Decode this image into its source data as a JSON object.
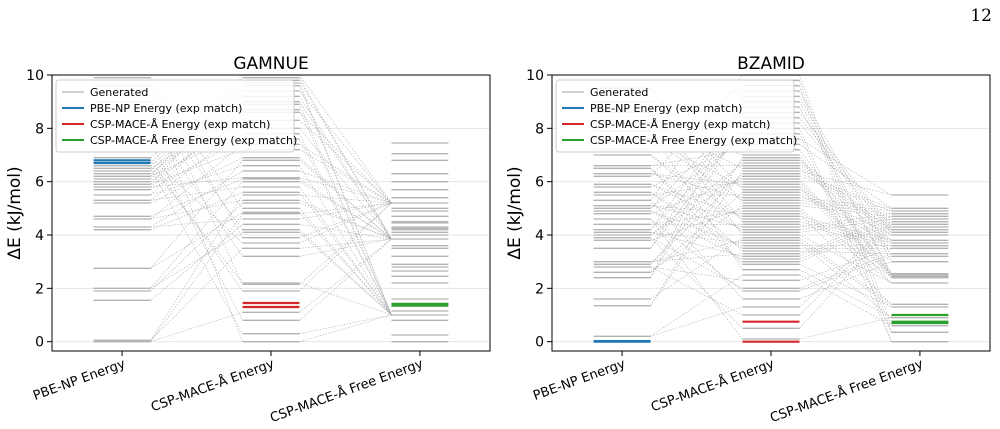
{
  "page_number": "12",
  "colors": {
    "generated": "#b3b3b3",
    "pbe": "#1f77b4",
    "mace": "#d62728",
    "mace_free": "#2ca02c",
    "grid": "#e6e6e6"
  },
  "chart_data": [
    {
      "type": "line",
      "title": "GAMNUE",
      "ylabel": "ΔE (kJ/mol)",
      "categories": [
        "PBE-NP Energy",
        "CSP-MACE-Å Energy",
        "CSP-MACE-Å Free Energy"
      ],
      "ylim": [
        -0.35,
        10
      ],
      "yticks": [
        0,
        2,
        4,
        6,
        8,
        10
      ],
      "grid": true,
      "legend_position": "top-left",
      "legend": [
        "Generated",
        "PBE-NP Energy (exp match)",
        "CSP-MACE-Å Energy (exp match)",
        "CSP-MACE-Å Free Energy (exp match)"
      ],
      "generated_levels": [
        [
          0,
          0.05,
          1.55,
          1.9,
          2.0,
          2.75,
          4.2,
          4.3,
          4.6,
          4.7,
          5.2,
          5.3,
          5.5,
          5.7,
          5.8,
          5.9,
          6.0,
          6.1,
          6.2,
          6.3,
          6.4,
          6.5,
          6.6,
          6.7,
          6.8,
          6.9,
          7.5,
          8.2,
          9.0,
          9.6,
          9.9
        ],
        [
          0,
          0.3,
          0.8,
          1.1,
          1.9,
          2.15,
          2.2,
          3.2,
          3.5,
          3.7,
          3.9,
          4.1,
          4.2,
          4.4,
          4.6,
          4.8,
          4.85,
          5.0,
          5.2,
          5.3,
          5.5,
          5.6,
          5.8,
          6.0,
          6.1,
          6.15,
          6.4,
          6.6,
          6.8,
          6.9,
          7.2,
          7.4,
          7.6,
          7.8,
          8.0,
          8.3,
          8.6,
          8.7,
          8.9,
          9.0,
          9.2,
          9.4,
          9.6,
          9.7,
          9.8,
          9.9,
          10.0
        ],
        [
          0,
          0.25,
          0.8,
          1.0,
          1.15,
          1.6,
          2.2,
          2.45,
          2.65,
          2.8,
          2.9,
          3.2,
          3.5,
          3.6,
          3.85,
          4.0,
          4.1,
          4.2,
          4.25,
          4.3,
          4.45,
          4.5,
          4.7,
          4.9,
          5.0,
          5.2,
          5.4,
          5.7,
          6.0,
          6.3,
          6.8,
          7.05,
          7.45
        ]
      ],
      "exp_match": {
        "pbe": [
          6.7,
          6.8
        ],
        "mace": [
          1.3,
          1.45
        ],
        "mace_free": [
          1.35,
          1.42
        ]
      }
    },
    {
      "type": "line",
      "title": "BZAMID",
      "ylabel": "ΔE (kJ/mol)",
      "categories": [
        "PBE-NP Energy",
        "CSP-MACE-Å Energy",
        "CSP-MACE-Å Free Energy"
      ],
      "ylim": [
        -0.35,
        10
      ],
      "yticks": [
        0,
        2,
        4,
        6,
        8,
        10
      ],
      "grid": true,
      "legend_position": "top-left",
      "legend": [
        "Generated",
        "PBE-NP Energy (exp match)",
        "CSP-MACE-Å Energy (exp match)",
        "CSP-MACE-Å Free Energy (exp match)"
      ],
      "generated_levels": [
        [
          0.2,
          1.35,
          1.6,
          2.4,
          2.6,
          2.8,
          2.9,
          3.0,
          3.5,
          3.8,
          3.9,
          4.0,
          4.1,
          4.2,
          4.4,
          4.6,
          4.8,
          4.9,
          5.0,
          5.1,
          5.3,
          5.5,
          5.6,
          5.8,
          5.9,
          6.2,
          6.3,
          6.5,
          6.6,
          7.0,
          7.2,
          7.6,
          7.9,
          8.2,
          8.6,
          9.0,
          9.5
        ],
        [
          0.1,
          0.5,
          1.0,
          1.3,
          1.6,
          1.9,
          2.0,
          2.3,
          2.5,
          2.7,
          2.9,
          3.0,
          3.1,
          3.2,
          3.3,
          3.4,
          3.5,
          3.6,
          3.7,
          3.8,
          3.9,
          4.0,
          4.1,
          4.2,
          4.3,
          4.4,
          4.5,
          4.6,
          4.7,
          4.8,
          4.9,
          5.0,
          5.1,
          5.2,
          5.3,
          5.4,
          5.5,
          5.6,
          5.7,
          5.8,
          5.9,
          6.0,
          6.1,
          6.2,
          6.3,
          6.4,
          6.5,
          6.6,
          6.7,
          6.8,
          6.9,
          7.0,
          7.2,
          7.4,
          7.6,
          7.8,
          8.0,
          8.2,
          8.4,
          8.6,
          8.8,
          9.0,
          9.2,
          9.4,
          9.6,
          9.8,
          10.0
        ],
        [
          0,
          0.35,
          0.6,
          0.9,
          1.3,
          1.4,
          2.2,
          2.4,
          2.45,
          2.5,
          2.55,
          3.0,
          3.2,
          3.3,
          3.5,
          3.6,
          3.7,
          3.8,
          4.0,
          4.1,
          4.2,
          4.3,
          4.4,
          4.5,
          4.6,
          4.7,
          4.8,
          4.9,
          5.0,
          5.5
        ]
      ],
      "exp_match": {
        "pbe": [
          0.0,
          0.02
        ],
        "mace": [
          0.0,
          0.75
        ],
        "mace_free": [
          0.7,
          0.75,
          1.0
        ]
      }
    }
  ]
}
